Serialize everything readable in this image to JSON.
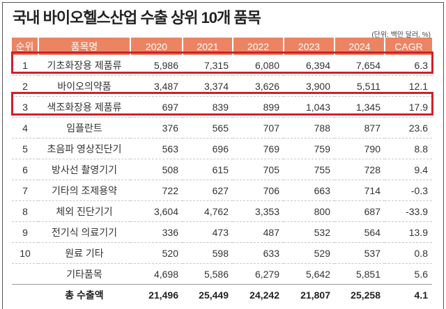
{
  "title": "국내 바이오헬스산업 수출 상위 10개 품목",
  "unit": "(단위: 백만 달러, %)",
  "colors": {
    "header": "#ec8462",
    "highlight": "#d0202a"
  },
  "columns": [
    "순위",
    "품목명",
    "2020",
    "2021",
    "2022",
    "2023",
    "2024",
    "CAGR"
  ],
  "rows": [
    {
      "rank": "1",
      "name": "기초화장용 제품류",
      "v": [
        "5,986",
        "7,315",
        "6,080",
        "6,394",
        "7,654",
        "6.3"
      ],
      "highlighted": true
    },
    {
      "rank": "2",
      "name": "바이오의약품",
      "v": [
        "3,487",
        "3,374",
        "3,626",
        "3,900",
        "5,511",
        "12.1"
      ]
    },
    {
      "rank": "3",
      "name": "색조화장용 제품류",
      "v": [
        "697",
        "839",
        "899",
        "1,043",
        "1,345",
        "17.9"
      ],
      "highlighted": true
    },
    {
      "rank": "4",
      "name": "임플란트",
      "v": [
        "376",
        "565",
        "707",
        "788",
        "877",
        "23.6"
      ]
    },
    {
      "rank": "5",
      "name": "초음파 영상진단기",
      "v": [
        "563",
        "696",
        "769",
        "759",
        "790",
        "8.8"
      ]
    },
    {
      "rank": "6",
      "name": "방사선 촬영기기",
      "v": [
        "508",
        "615",
        "705",
        "755",
        "728",
        "9.4"
      ]
    },
    {
      "rank": "7",
      "name": "기타의 조제용약",
      "v": [
        "722",
        "627",
        "706",
        "663",
        "714",
        "-0.3"
      ]
    },
    {
      "rank": "8",
      "name": "체외 진단기기",
      "v": [
        "3,604",
        "4,762",
        "3,353",
        "800",
        "687",
        "-33.9"
      ]
    },
    {
      "rank": "9",
      "name": "전기식 의료기기",
      "v": [
        "336",
        "473",
        "487",
        "532",
        "564",
        "13.9"
      ]
    },
    {
      "rank": "10",
      "name": "원료 기타",
      "v": [
        "520",
        "598",
        "633",
        "529",
        "537",
        "0.8"
      ]
    },
    {
      "rank": "",
      "name": "기타품목",
      "v": [
        "4,698",
        "5,586",
        "6,279",
        "5,642",
        "5,851",
        "5.6"
      ]
    },
    {
      "rank": "",
      "name": "총 수출액",
      "v": [
        "21,496",
        "25,449",
        "24,242",
        "21,807",
        "25,258",
        "4.1"
      ],
      "total": true
    }
  ]
}
